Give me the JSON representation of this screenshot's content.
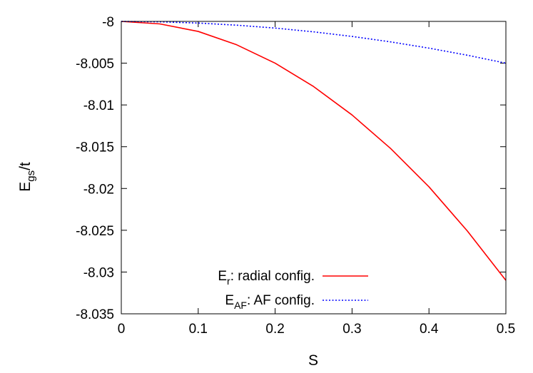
{
  "chart_data": {
    "type": "line",
    "xlabel": "S",
    "ylabel": {
      "main": "E",
      "sub": "gs",
      "suffix": "/t"
    },
    "xlim": [
      0,
      0.5
    ],
    "ylim": [
      -8.035,
      -8
    ],
    "xticks": [
      0,
      0.1,
      0.2,
      0.3,
      0.4,
      0.5
    ],
    "xtick_labels": [
      "0",
      "0.1",
      "0.2",
      "0.3",
      "0.4",
      "0.5"
    ],
    "yticks": [
      -8,
      -8.005,
      -8.01,
      -8.015,
      -8.02,
      -8.025,
      -8.03,
      -8.035
    ],
    "ytick_labels": [
      "-8",
      "-8.005",
      "-8.01",
      "-8.015",
      "-8.02",
      "-8.025",
      "-8.03",
      "-8.035"
    ],
    "grid": false,
    "legend_position": "bottom-right",
    "series": [
      {
        "name": "radial config.",
        "legend": {
          "main": "E",
          "sub": "r",
          "rest": ": radial config."
        },
        "color": "#ff0000",
        "style": "solid",
        "x": [
          0,
          0.05,
          0.1,
          0.15,
          0.2,
          0.25,
          0.3,
          0.35,
          0.4,
          0.45,
          0.5
        ],
        "y": [
          -8,
          -8.0003,
          -8.0012,
          -8.0028,
          -8.005,
          -8.0078,
          -8.0112,
          -8.0152,
          -8.0198,
          -8.0251,
          -8.031
        ]
      },
      {
        "name": "AF config.",
        "legend": {
          "main": "E",
          "sub": "AF",
          "rest": ": AF config."
        },
        "color": "#0000ff",
        "style": "dotted",
        "x": [
          0,
          0.05,
          0.1,
          0.15,
          0.2,
          0.25,
          0.3,
          0.35,
          0.4,
          0.45,
          0.5
        ],
        "y": [
          -8,
          -8.00005,
          -8.0002,
          -8.00045,
          -8.0008,
          -8.00125,
          -8.0018,
          -8.00245,
          -8.0032,
          -8.00405,
          -8.005
        ]
      }
    ]
  }
}
